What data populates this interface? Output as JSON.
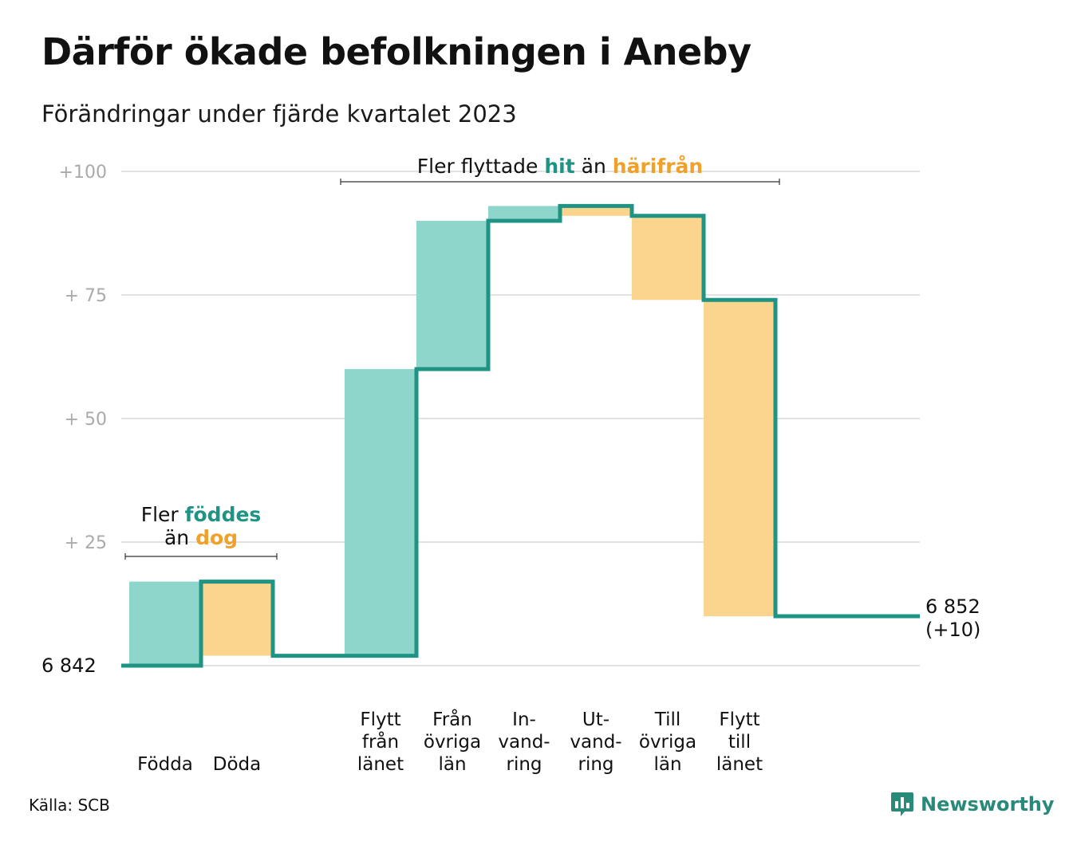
{
  "title": "Därför ökade befolkningen i Aneby",
  "subtitle": "Förändringar under fjärde kvartalet 2023",
  "source": "Källa: SCB",
  "brand": {
    "name": "Newsworthy",
    "icon": "newsworthy-logo-icon"
  },
  "colors": {
    "increase_fill": "#8ed5cc",
    "decrease_fill": "#fbd58e",
    "step_line": "#1f9484",
    "grid": "#e2e2e2",
    "tick_text": "#aaaaaa",
    "accent_green": "#1f9484",
    "accent_orange": "#f0a12a"
  },
  "chart_data": {
    "type": "waterfall",
    "title": "Därför ökade befolkningen i Aneby",
    "subtitle": "Förändringar under fjärde kvartalet 2023",
    "start_value": 6842,
    "start_label": "6  842",
    "end_value": 6852,
    "end_label": [
      "6 852",
      "(+10)"
    ],
    "y_ticks": [
      {
        "value": 25,
        "label": "+  25"
      },
      {
        "value": 50,
        "label": "+  50"
      },
      {
        "value": 75,
        "label": "+  75"
      },
      {
        "value": 100,
        "label": "+100"
      }
    ],
    "ylim": [
      0,
      100
    ],
    "grid": true,
    "steps": [
      {
        "label": [
          "Födda"
        ],
        "change": 17,
        "direction": "increase"
      },
      {
        "label": [
          "Döda"
        ],
        "change": -15,
        "direction": "decrease"
      },
      {
        "label": [],
        "change": 0,
        "direction": "none"
      },
      {
        "label": [
          "Flytt",
          "från",
          "länet"
        ],
        "change": 58,
        "direction": "increase"
      },
      {
        "label": [
          "Från",
          "övriga",
          "län"
        ],
        "change": 30,
        "direction": "increase"
      },
      {
        "label": [
          "In-",
          "vand-",
          "ring"
        ],
        "change": 3,
        "direction": "increase"
      },
      {
        "label": [
          "Ut-",
          "vand-",
          "ring"
        ],
        "change": -2,
        "direction": "decrease"
      },
      {
        "label": [
          "Till",
          "övriga",
          "län"
        ],
        "change": -17,
        "direction": "decrease"
      },
      {
        "label": [
          "Flytt",
          "till",
          "länet"
        ],
        "change": -64,
        "direction": "decrease"
      },
      {
        "label": [],
        "change": 0,
        "direction": "none"
      }
    ],
    "annotations": [
      {
        "lines": [
          [
            {
              "text": "Fler ",
              "style": "plain"
            },
            {
              "text": "föddes",
              "style": "green"
            }
          ],
          [
            {
              "text": "än ",
              "style": "plain"
            },
            {
              "text": "dog",
              "style": "orange"
            }
          ]
        ],
        "span": [
          0,
          1
        ]
      },
      {
        "lines": [
          [
            {
              "text": "Fler flyttade ",
              "style": "plain"
            },
            {
              "text": "hit",
              "style": "green"
            },
            {
              "text": " än ",
              "style": "plain"
            },
            {
              "text": "härifrån",
              "style": "orange"
            }
          ]
        ],
        "span": [
          3,
          8
        ]
      }
    ]
  }
}
